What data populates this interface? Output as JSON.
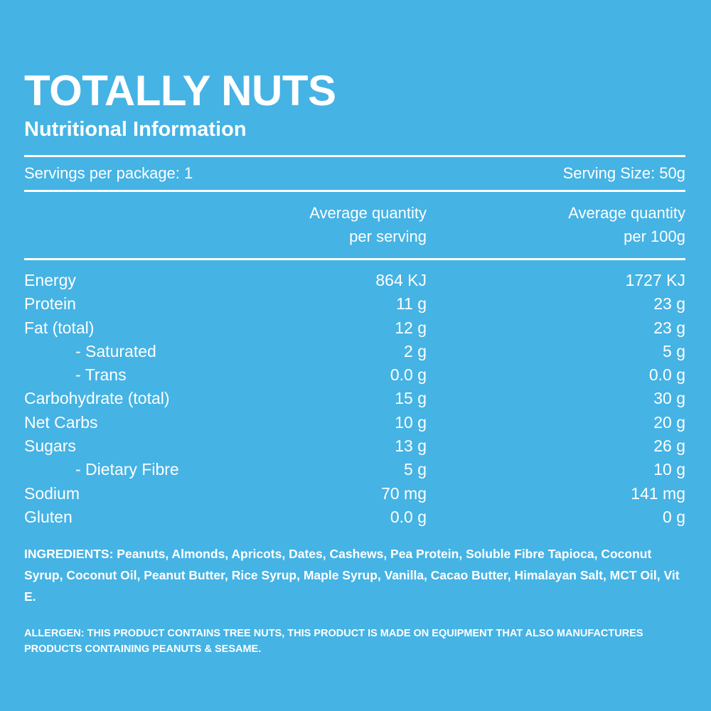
{
  "brand": "TOTALLY NUTS",
  "subtitle": "Nutritional Information",
  "servings": {
    "per_package": "Servings per package: 1",
    "size": "Serving Size: 50g"
  },
  "columns": {
    "per_serving": [
      "Average quantity",
      "per serving"
    ],
    "per_100g": [
      "Average quantity",
      "per 100g"
    ]
  },
  "nutrients": [
    {
      "label": "Energy",
      "per_serving": "864 KJ",
      "per_100g": "1727 KJ",
      "sub": false
    },
    {
      "label": "Protein",
      "per_serving": "11 g",
      "per_100g": "23 g",
      "sub": false
    },
    {
      "label": "Fat (total)",
      "per_serving": "12 g",
      "per_100g": "23 g",
      "sub": false
    },
    {
      "label": "- Saturated",
      "per_serving": "2 g",
      "per_100g": "5 g",
      "sub": true
    },
    {
      "label": "- Trans",
      "per_serving": "0.0 g",
      "per_100g": "0.0 g",
      "sub": true
    },
    {
      "label": "Carbohydrate (total)",
      "per_serving": "15 g",
      "per_100g": "30 g",
      "sub": false
    },
    {
      "label": "Net Carbs",
      "per_serving": "10 g",
      "per_100g": "20 g",
      "sub": false
    },
    {
      "label": "Sugars",
      "per_serving": "13 g",
      "per_100g": "26 g",
      "sub": false
    },
    {
      "label": "- Dietary Fibre",
      "per_serving": "5 g",
      "per_100g": "10 g",
      "sub": true
    },
    {
      "label": "Sodium",
      "per_serving": "70 mg",
      "per_100g": "141 mg",
      "sub": false
    },
    {
      "label": "Gluten",
      "per_serving": "0.0 g",
      "per_100g": "0 g",
      "sub": false
    }
  ],
  "ingredients": "INGREDIENTS: Peanuts, Almonds, Apricots, Dates, Cashews, Pea Protein, Soluble Fibre Tapioca, Coconut Syrup, Coconut Oil, Peanut Butter, Rice Syrup, Maple Syrup, Vanilla, Cacao Butter, Himalayan Salt, MCT Oil, Vit E.",
  "allergen": "ALLERGEN: THIS PRODUCT CONTAINS TREE NUTS, THIS PRODUCT IS MADE ON EQUIPMENT THAT ALSO MANUFACTURES PRODUCTS CONTAINING PEANUTS & SESAME.",
  "colors": {
    "background": "#45b3e4",
    "text": "#ffffff"
  }
}
